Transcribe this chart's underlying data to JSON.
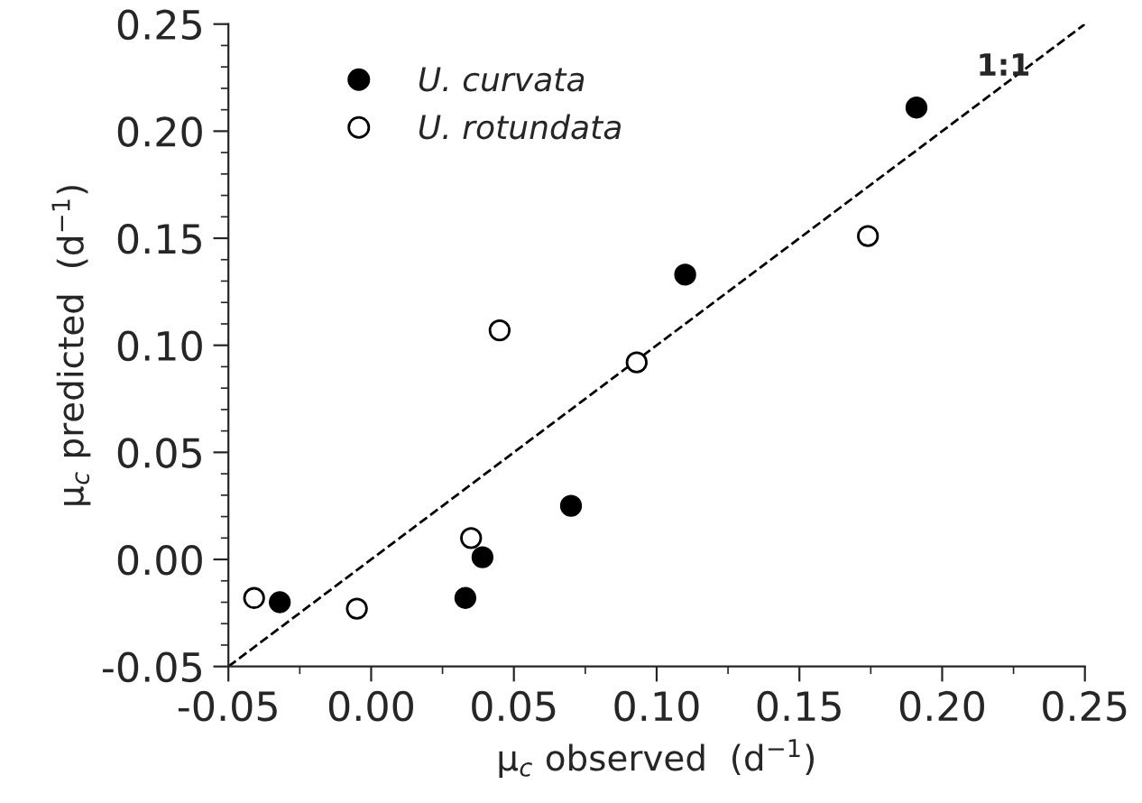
{
  "chart_data": {
    "type": "scatter",
    "xlabel": "μ$_{c}$ observed  (d$^{−1}$)",
    "ylabel": "μ$_{c}$ predicted  (d$^{−1}$)",
    "series": [
      {
        "name": "U. curvata",
        "color": "#000000",
        "x": [
          -0.032,
          0.033,
          0.039,
          0.07,
          0.11,
          0.191
        ],
        "values": [
          -0.02,
          -0.018,
          0.001,
          0.025,
          0.133,
          0.211
        ]
      },
      {
        "name": "U. rotundata",
        "color": "#ffffff",
        "x": [
          -0.041,
          -0.005,
          0.035,
          0.045,
          0.093,
          0.174
        ],
        "values": [
          -0.018,
          -0.023,
          0.01,
          0.107,
          0.092,
          0.151
        ]
      },
      {
        "type": "line",
        "color": "#000000",
        "line_style": "dashed",
        "marker": "none",
        "x": [
          -0.05,
          0.25
        ],
        "values": [
          -0.05,
          0.25
        ]
      }
    ],
    "annotations": [
      "1:1"
    ],
    "xlim": [
      -0.05,
      0.25
    ],
    "ylim": [
      -0.05,
      0.25
    ],
    "xticks": [
      {
        "value": -0.05,
        "label": "-0.05"
      },
      {
        "value": 0.0,
        "label": "0.00"
      },
      {
        "value": 0.05,
        "label": "0.05"
      },
      {
        "value": 0.1,
        "label": "0.10"
      },
      {
        "value": 0.15,
        "label": "0.15"
      },
      {
        "value": 0.2,
        "label": "0.20"
      },
      {
        "value": 0.25,
        "label": "0.25"
      }
    ],
    "yticks": [
      {
        "value": -0.05,
        "label": "-0.05"
      },
      {
        "value": 0.0,
        "label": "0.00"
      },
      {
        "value": 0.05,
        "label": "0.05"
      },
      {
        "value": 0.1,
        "label": "0.10"
      },
      {
        "value": 0.15,
        "label": "0.15"
      },
      {
        "value": 0.2,
        "label": "0.20"
      },
      {
        "value": 0.25,
        "label": "0.25"
      }
    ],
    "marker": "circle",
    "legend": "top left",
    "grid": false
  }
}
